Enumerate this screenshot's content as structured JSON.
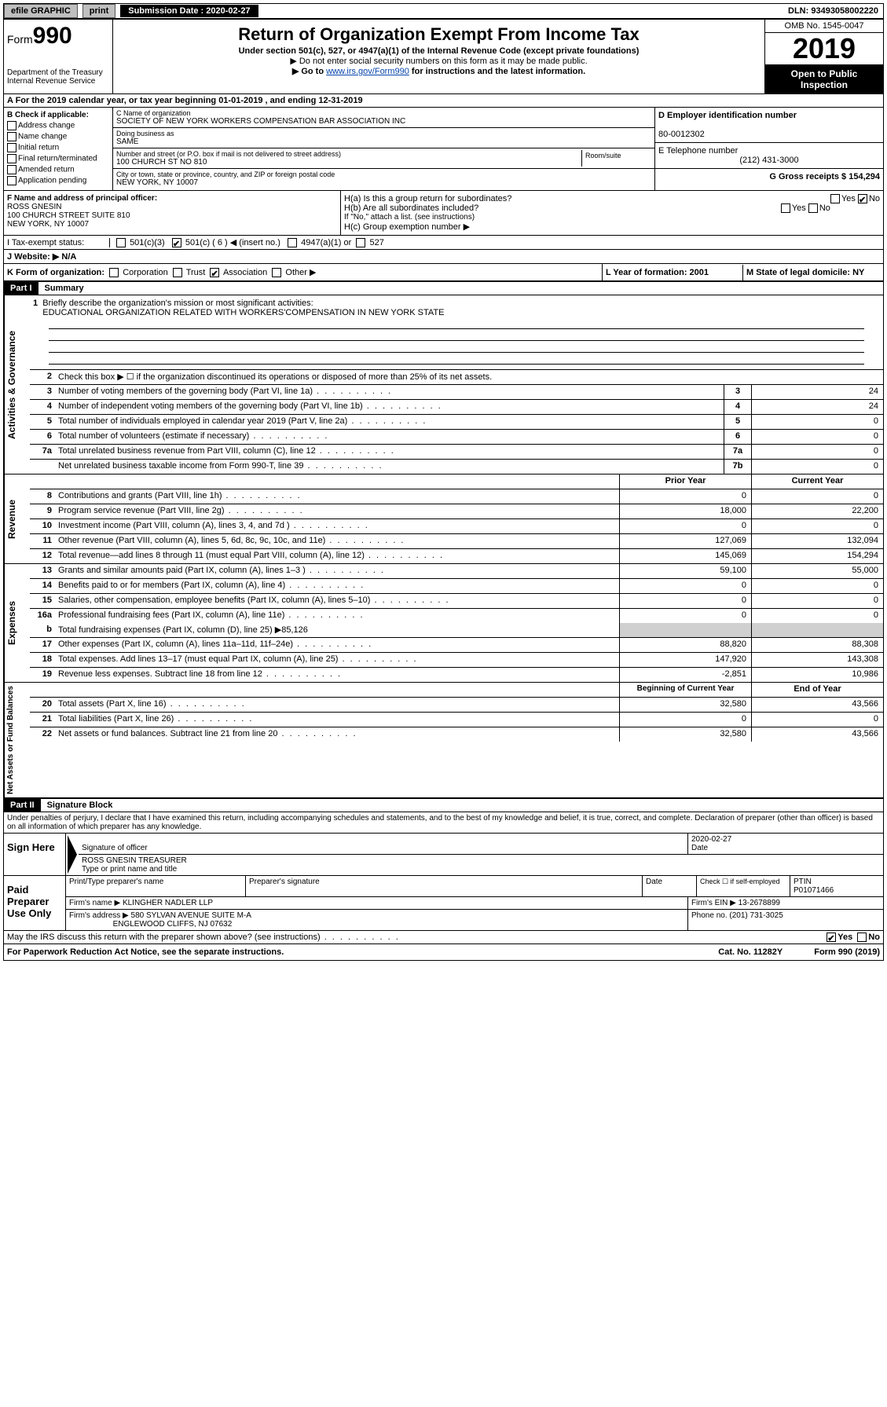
{
  "topbar": {
    "efile": "efile GRAPHIC",
    "print": "print",
    "sub_label": "Submission Date :",
    "sub_date": "2020-02-27",
    "dln": "DLN: 93493058002220"
  },
  "header": {
    "form_prefix": "Form",
    "form_no": "990",
    "dept": "Department of the Treasury\nInternal Revenue Service",
    "title": "Return of Organization Exempt From Income Tax",
    "subtitle": "Under section 501(c), 527, or 4947(a)(1) of the Internal Revenue Code (except private foundations)",
    "note1": "▶ Do not enter social security numbers on this form as it may be made public.",
    "note2_pre": "▶ Go to ",
    "note2_link": "www.irs.gov/Form990",
    "note2_post": " for instructions and the latest information.",
    "omb": "OMB No. 1545-0047",
    "year": "2019",
    "open": "Open to Public Inspection"
  },
  "A": "A   For the 2019 calendar year, or tax year beginning 01-01-2019    , and ending 12-31-2019",
  "B": {
    "label": "B Check if applicable:",
    "opts": [
      "Address change",
      "Name change",
      "Initial return",
      "Final return/terminated",
      "Amended return",
      "Application pending"
    ]
  },
  "C": {
    "name_lbl": "C Name of organization",
    "name": "SOCIETY OF NEW YORK WORKERS COMPENSATION BAR ASSOCIATION INC",
    "dba_lbl": "Doing business as",
    "dba": "SAME",
    "addr_lbl": "Number and street (or P.O. box if mail is not delivered to street address)",
    "addr": "100 CHURCH ST NO 810",
    "room_lbl": "Room/suite",
    "city_lbl": "City or town, state or province, country, and ZIP or foreign postal code",
    "city": "NEW YORK, NY  10007"
  },
  "D": {
    "ein_lbl": "D Employer identification number",
    "ein": "80-0012302",
    "tel_lbl": "E Telephone number",
    "tel": "(212) 431-3000",
    "gross": "G Gross receipts $ 154,294"
  },
  "F": {
    "lbl": "F  Name and address of principal officer:",
    "name": "ROSS GNESIN",
    "addr1": "100 CHURCH STREET SUITE 810",
    "addr2": "NEW YORK, NY  10007"
  },
  "H": {
    "a": "H(a)  Is this a group return for subordinates?",
    "b": "H(b)  Are all subordinates included?",
    "bnote": "If \"No,\" attach a list. (see instructions)",
    "c": "H(c)  Group exemption number ▶",
    "yes": "Yes",
    "no": "No"
  },
  "I": {
    "lbl": "I   Tax-exempt status:",
    "o1": "501(c)(3)",
    "o2": "501(c) ( 6 ) ◀ (insert no.)",
    "o3": "4947(a)(1) or",
    "o4": "527"
  },
  "J": "J   Website: ▶  N/A",
  "K": "K Form of organization:",
  "K_opts": [
    "Corporation",
    "Trust",
    "Association",
    "Other ▶"
  ],
  "L": "L Year of formation: 2001",
  "M": "M State of legal domicile: NY",
  "part1": "Part I",
  "part1_title": "Summary",
  "mission_lbl": "Briefly describe the organization's mission or most significant activities:",
  "mission": "EDUCATIONAL ORGANIZATION RELATED WITH WORKERS'COMPENSATION IN NEW YORK STATE",
  "line2": "Check this box ▶ ☐  if the organization discontinued its operations or disposed of more than 25% of its net assets.",
  "gov_lines": [
    {
      "n": "3",
      "d": "Number of voting members of the governing body (Part VI, line 1a)",
      "b": "3",
      "v": "24"
    },
    {
      "n": "4",
      "d": "Number of independent voting members of the governing body (Part VI, line 1b)",
      "b": "4",
      "v": "24"
    },
    {
      "n": "5",
      "d": "Total number of individuals employed in calendar year 2019 (Part V, line 2a)",
      "b": "5",
      "v": "0"
    },
    {
      "n": "6",
      "d": "Total number of volunteers (estimate if necessary)",
      "b": "6",
      "v": "0"
    },
    {
      "n": "7a",
      "d": "Total unrelated business revenue from Part VIII, column (C), line 12",
      "b": "7a",
      "v": "0"
    },
    {
      "n": "",
      "d": "Net unrelated business taxable income from Form 990-T, line 39",
      "b": "7b",
      "v": "0"
    }
  ],
  "prior": "Prior Year",
  "current": "Current Year",
  "rev_lines": [
    {
      "n": "8",
      "d": "Contributions and grants (Part VIII, line 1h)",
      "p": "0",
      "c": "0"
    },
    {
      "n": "9",
      "d": "Program service revenue (Part VIII, line 2g)",
      "p": "18,000",
      "c": "22,200"
    },
    {
      "n": "10",
      "d": "Investment income (Part VIII, column (A), lines 3, 4, and 7d )",
      "p": "0",
      "c": "0"
    },
    {
      "n": "11",
      "d": "Other revenue (Part VIII, column (A), lines 5, 6d, 8c, 9c, 10c, and 11e)",
      "p": "127,069",
      "c": "132,094"
    },
    {
      "n": "12",
      "d": "Total revenue—add lines 8 through 11 (must equal Part VIII, column (A), line 12)",
      "p": "145,069",
      "c": "154,294"
    }
  ],
  "exp_lines": [
    {
      "n": "13",
      "d": "Grants and similar amounts paid (Part IX, column (A), lines 1–3 )",
      "p": "59,100",
      "c": "55,000"
    },
    {
      "n": "14",
      "d": "Benefits paid to or for members (Part IX, column (A), line 4)",
      "p": "0",
      "c": "0"
    },
    {
      "n": "15",
      "d": "Salaries, other compensation, employee benefits (Part IX, column (A), lines 5–10)",
      "p": "0",
      "c": "0"
    },
    {
      "n": "16a",
      "d": "Professional fundraising fees (Part IX, column (A), line 11e)",
      "p": "0",
      "c": "0"
    }
  ],
  "line16b": "Total fundraising expenses (Part IX, column (D), line 25) ▶85,126",
  "exp_lines2": [
    {
      "n": "17",
      "d": "Other expenses (Part IX, column (A), lines 11a–11d, 11f–24e)",
      "p": "88,820",
      "c": "88,308"
    },
    {
      "n": "18",
      "d": "Total expenses. Add lines 13–17 (must equal Part IX, column (A), line 25)",
      "p": "147,920",
      "c": "143,308"
    },
    {
      "n": "19",
      "d": "Revenue less expenses. Subtract line 18 from line 12",
      "p": "-2,851",
      "c": "10,986"
    }
  ],
  "begin": "Beginning of Current Year",
  "end": "End of Year",
  "net_lines": [
    {
      "n": "20",
      "d": "Total assets (Part X, line 16)",
      "p": "32,580",
      "c": "43,566"
    },
    {
      "n": "21",
      "d": "Total liabilities (Part X, line 26)",
      "p": "0",
      "c": "0"
    },
    {
      "n": "22",
      "d": "Net assets or fund balances. Subtract line 21 from line 20",
      "p": "32,580",
      "c": "43,566"
    }
  ],
  "part2": "Part II",
  "part2_title": "Signature Block",
  "perjury": "Under penalties of perjury, I declare that I have examined this return, including accompanying schedules and statements, and to the best of my knowledge and belief, it is true, correct, and complete. Declaration of preparer (other than officer) is based on all information of which preparer has any knowledge.",
  "sign": {
    "here": "Sign Here",
    "sig_lbl": "Signature of officer",
    "date_lbl": "Date",
    "date": "2020-02-27",
    "name": "ROSS GNESIN  TREASURER",
    "name_lbl": "Type or print name and title"
  },
  "paid": {
    "here": "Paid Preparer Use Only",
    "prep_name_lbl": "Print/Type preparer's name",
    "prep_sig_lbl": "Preparer's signature",
    "date_lbl": "Date",
    "check_lbl": "Check ☐ if self-employed",
    "ptin_lbl": "PTIN",
    "ptin": "P01071466",
    "firm_name_lbl": "Firm's name    ▶",
    "firm_name": "KLINGHER NADLER LLP",
    "firm_ein_lbl": "Firm's EIN ▶",
    "firm_ein": "13-2678899",
    "firm_addr_lbl": "Firm's address ▶",
    "firm_addr": "580 SYLVAN AVENUE SUITE M-A",
    "firm_city": "ENGLEWOOD CLIFFS, NJ  07632",
    "phone_lbl": "Phone no.",
    "phone": "(201) 731-3025"
  },
  "discuss": "May the IRS discuss this return with the preparer shown above? (see instructions)",
  "footer": {
    "pra": "For Paperwork Reduction Act Notice, see the separate instructions.",
    "cat": "Cat. No. 11282Y",
    "form": "Form 990 (2019)"
  }
}
